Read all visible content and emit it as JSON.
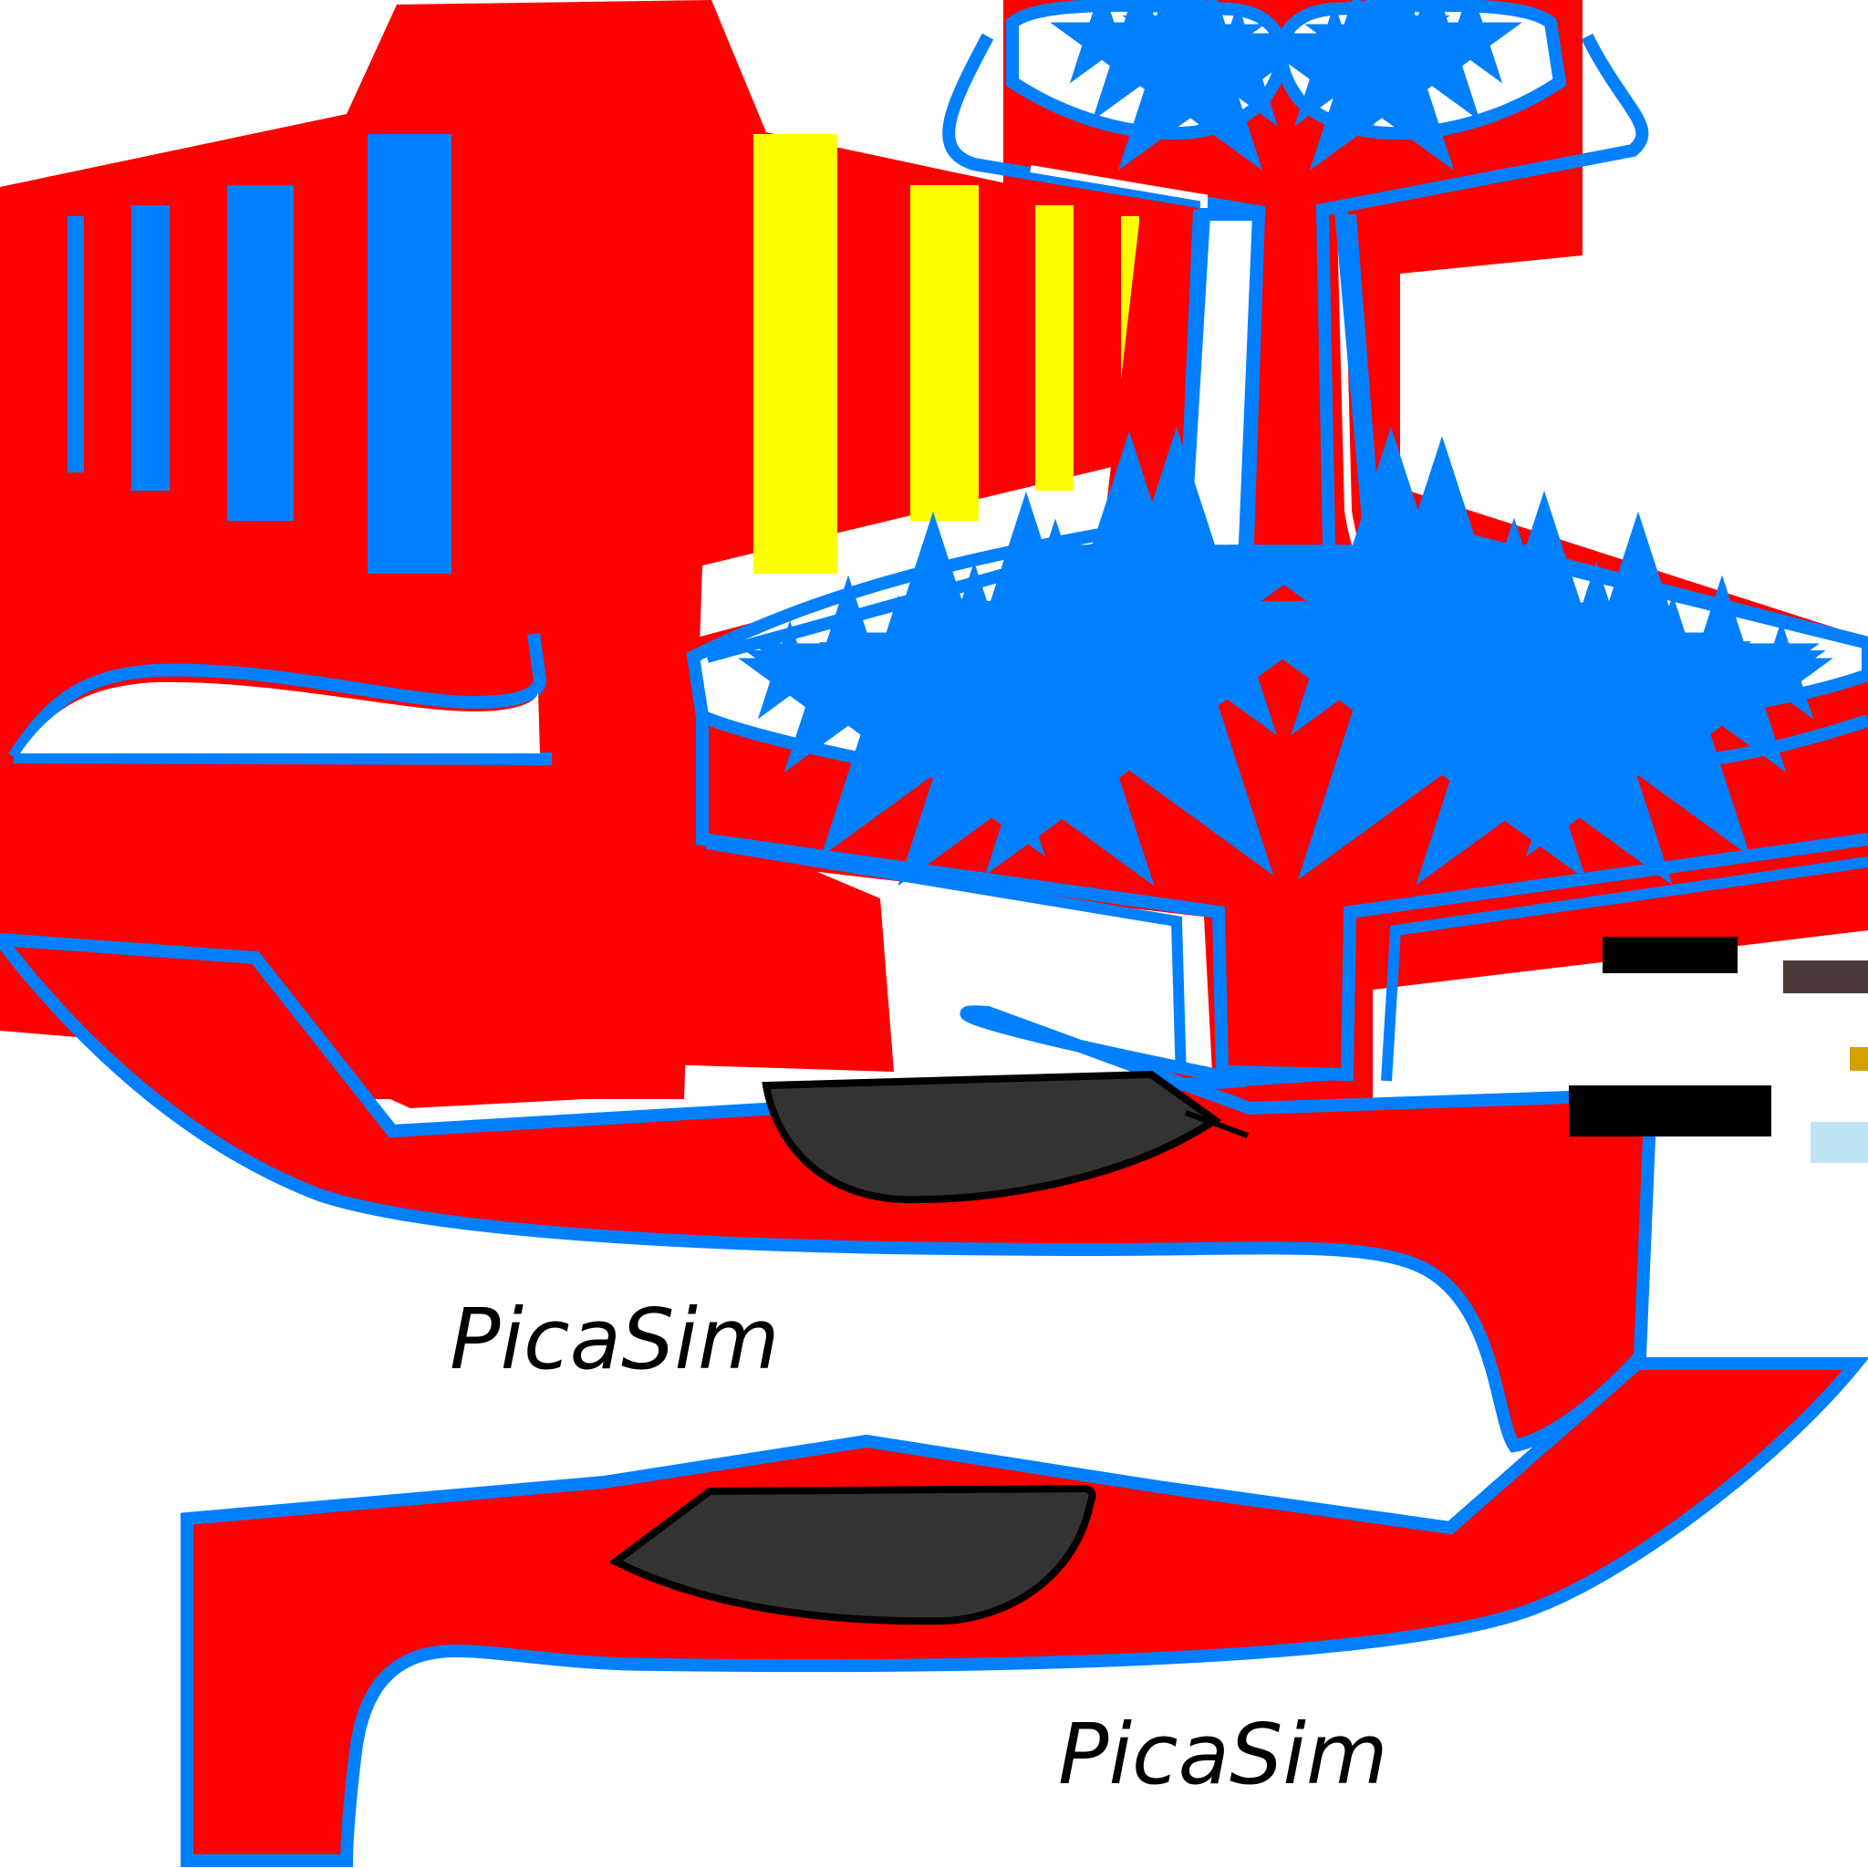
{
  "texture": {
    "brand_label_top": "PicaSim",
    "brand_label_bottom": "PicaSim",
    "colors": {
      "body_red": "#ff0000",
      "outline_blue": "#0080ff",
      "stripe_yellow": "#ffff00",
      "star_yellow": "#ffff00",
      "canopy_dark": "#333333",
      "background": "#ffffff"
    },
    "swatches": [
      {
        "name": "black",
        "color": "#000000"
      },
      {
        "name": "dark-brown",
        "color": "#4a3a3a"
      },
      {
        "name": "gold",
        "color": "#d4a000"
      },
      {
        "name": "black",
        "color": "#000000"
      },
      {
        "name": "light-blue",
        "color": "#c0e6f6"
      }
    ]
  }
}
